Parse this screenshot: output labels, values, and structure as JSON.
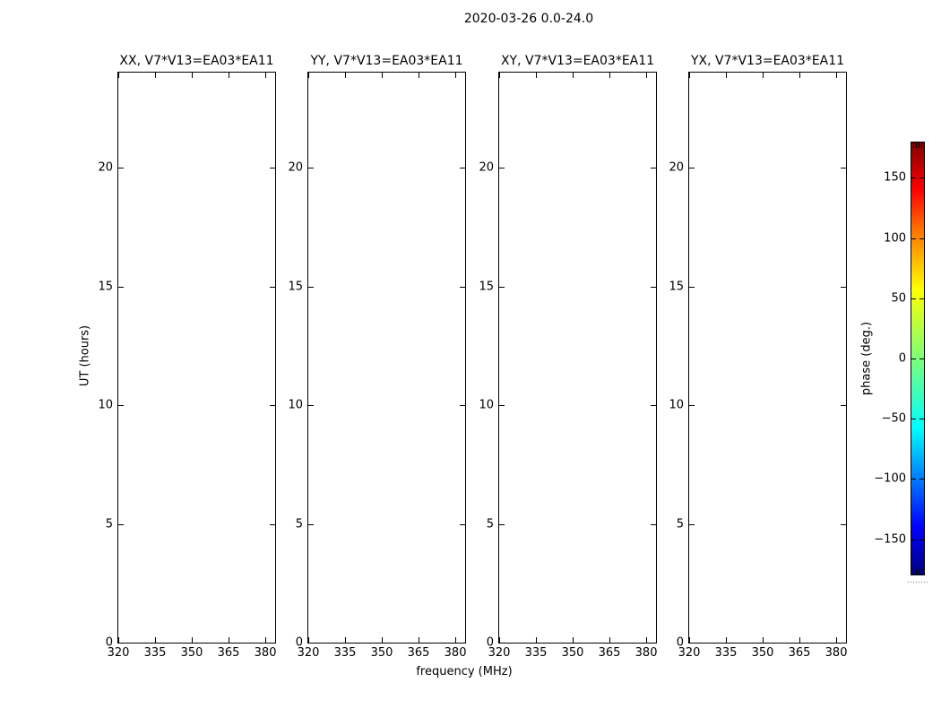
{
  "figure": {
    "title": "2020-03-26 0.0-24.0",
    "xlabel": "frequency (MHz)",
    "ylabel": "UT (hours)"
  },
  "panels": [
    {
      "title": "XX, V7*V13=EA03*EA11"
    },
    {
      "title": "YY, V7*V13=EA03*EA11"
    },
    {
      "title": "XY, V7*V13=EA03*EA11"
    },
    {
      "title": "YX, V7*V13=EA03*EA11"
    }
  ],
  "colorbar": {
    "label": "phase (deg.)"
  },
  "chart_data": {
    "type": "heatmap",
    "title": "2020-03-26 0.0-24.0",
    "xlabel": "frequency (MHz)",
    "ylabel": "UT (hours)",
    "xlim": [
      320,
      384
    ],
    "ylim": [
      0,
      24
    ],
    "x_ticks": [
      320,
      335,
      350,
      365,
      380
    ],
    "y_ticks": [
      0,
      5,
      10,
      15,
      20
    ],
    "grid": false,
    "panels": [
      {
        "title": "XX, V7*V13=EA03*EA11",
        "values": []
      },
      {
        "title": "YY, V7*V13=EA03*EA11",
        "values": []
      },
      {
        "title": "XY, V7*V13=EA03*EA11",
        "values": []
      },
      {
        "title": "YX, V7*V13=EA03*EA11",
        "values": []
      }
    ],
    "colorbar": {
      "label": "phase (deg.)",
      "ticks": [
        150,
        100,
        50,
        0,
        -50,
        -100,
        -150
      ],
      "clim": [
        -180,
        180
      ],
      "colormap": "jet"
    },
    "notes": "All four panels are blank (no data values rendered)."
  }
}
